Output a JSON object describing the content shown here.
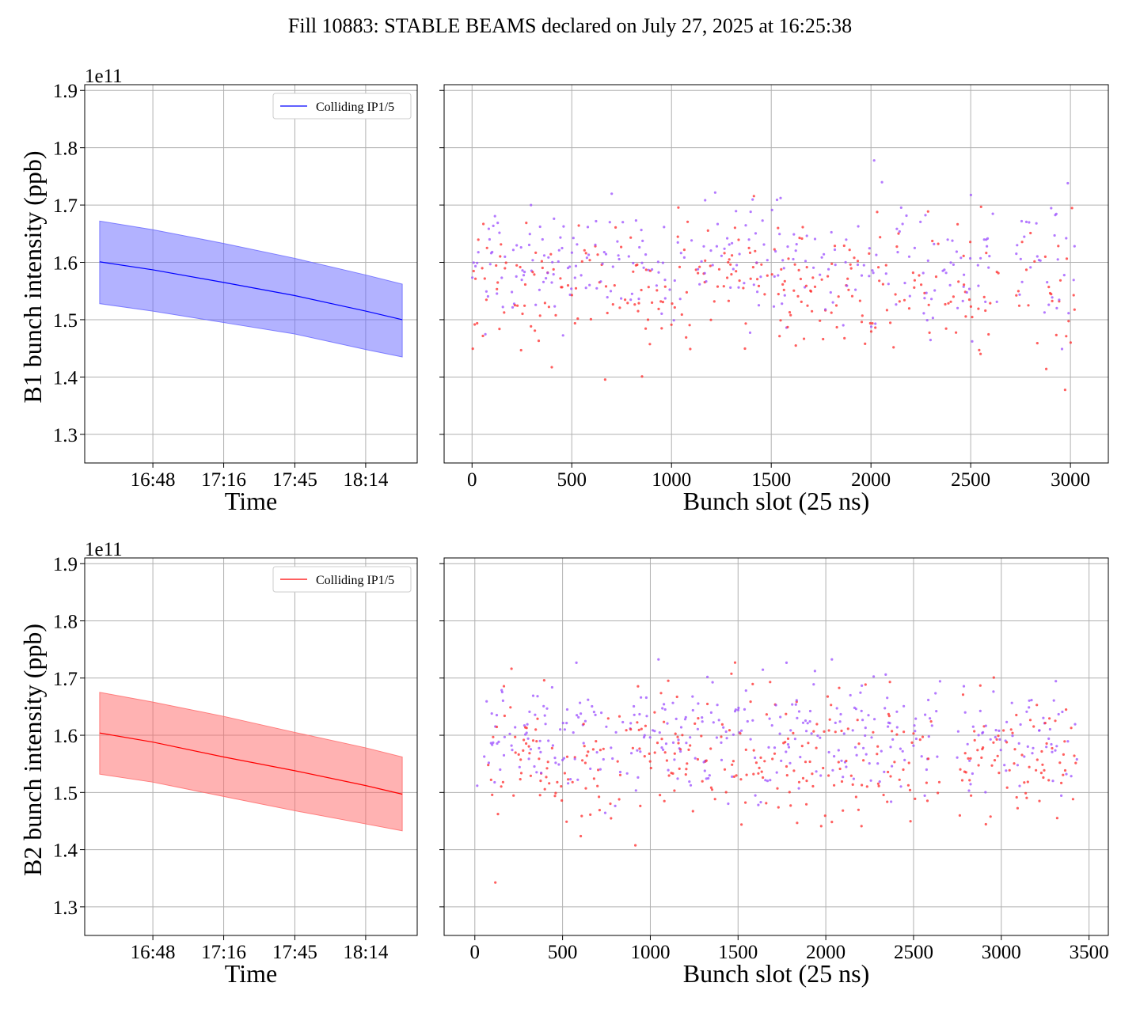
{
  "figure": {
    "title": "Fill 10883: STABLE BEAMS declared on July 27, 2025 at 16:25:38"
  },
  "colors": {
    "b1_line": "#0000ff",
    "b1_band": "#6666ff",
    "b2_line": "#ff0000",
    "b2_band": "#ff6666",
    "scatter_red": "#ff2a2a",
    "scatter_purple": "#9b4dff",
    "grid": "#b0b0b0"
  },
  "chart_data": [
    {
      "type": "area",
      "panel": "b1-time",
      "xlabel": "Time",
      "ylabel": "B1 bunch intensity (ppb)",
      "y_offset_label": "1e11",
      "x_tick_labels": [
        "16:48",
        "17:16",
        "17:45",
        "18:14"
      ],
      "y_ticks": [
        1.3,
        1.4,
        1.5,
        1.6,
        1.7,
        1.8,
        1.9
      ],
      "ylim": [
        1.25,
        1.91
      ],
      "legend": {
        "label": "Colliding IP1/5",
        "placement": "upper right"
      },
      "grid": true,
      "series": [
        {
          "name": "Colliding IP1/5",
          "x": [
            "16:25",
            "16:48",
            "17:16",
            "17:45",
            "18:14",
            "18:26"
          ],
          "mean": [
            1.601,
            1.587,
            1.565,
            1.542,
            1.515,
            1.5
          ],
          "lower": [
            1.528,
            1.515,
            1.495,
            1.475,
            1.448,
            1.435
          ],
          "upper": [
            1.672,
            1.657,
            1.633,
            1.607,
            1.578,
            1.562
          ]
        }
      ]
    },
    {
      "type": "scatter",
      "panel": "b1-slots",
      "xlabel": "Bunch slot (25 ns)",
      "ylabel": "",
      "xlim": [
        -140,
        3190
      ],
      "ylim": [
        1.25,
        1.91
      ],
      "x_ticks": [
        0,
        500,
        1000,
        1500,
        2000,
        2500,
        3000
      ],
      "y_ticks": [
        1.3,
        1.4,
        1.5,
        1.6,
        1.7,
        1.8,
        1.9
      ],
      "grid": true,
      "series": [
        {
          "color": "red",
          "mean": 1.55,
          "spread": 0.06
        },
        {
          "color": "purple",
          "mean": 1.6,
          "spread": 0.055
        }
      ],
      "trains": [
        [
          0,
          30
        ],
        [
          50,
          170
        ],
        [
          200,
          320
        ],
        [
          330,
          460
        ],
        [
          480,
          600
        ],
        [
          610,
          720
        ],
        [
          730,
          860
        ],
        [
          870,
          970
        ],
        [
          990,
          1110
        ],
        [
          1120,
          1240
        ],
        [
          1250,
          1340
        ],
        [
          1360,
          1480
        ],
        [
          1500,
          1600
        ],
        [
          1610,
          1720
        ],
        [
          1740,
          1850
        ],
        [
          1860,
          1970
        ],
        [
          1990,
          2100
        ],
        [
          2110,
          2220
        ],
        [
          2240,
          2340
        ],
        [
          2360,
          2480
        ],
        [
          2490,
          2610
        ],
        [
          2620,
          2640
        ],
        [
          2730,
          2850
        ],
        [
          2870,
          2990
        ],
        [
          3000,
          3030
        ]
      ]
    },
    {
      "type": "area",
      "panel": "b2-time",
      "xlabel": "Time",
      "ylabel": "B2 bunch intensity (ppb)",
      "y_offset_label": "1e11",
      "x_tick_labels": [
        "16:48",
        "17:16",
        "17:45",
        "18:14"
      ],
      "y_ticks": [
        1.3,
        1.4,
        1.5,
        1.6,
        1.7,
        1.8,
        1.9
      ],
      "ylim": [
        1.25,
        1.91
      ],
      "legend": {
        "label": "Colliding IP1/5",
        "placement": "upper right"
      },
      "grid": true,
      "series": [
        {
          "name": "Colliding IP1/5",
          "x": [
            "16:25",
            "16:48",
            "17:16",
            "17:45",
            "18:14",
            "18:26"
          ],
          "mean": [
            1.604,
            1.588,
            1.562,
            1.538,
            1.512,
            1.497
          ],
          "lower": [
            1.532,
            1.518,
            1.493,
            1.468,
            1.445,
            1.433
          ],
          "upper": [
            1.675,
            1.658,
            1.633,
            1.605,
            1.578,
            1.562
          ]
        }
      ]
    },
    {
      "type": "scatter",
      "panel": "b2-slots",
      "xlabel": "Bunch slot (25 ns)",
      "ylabel": "",
      "xlim": [
        -175,
        3610
      ],
      "ylim": [
        1.25,
        1.91
      ],
      "x_ticks": [
        0,
        500,
        1000,
        1500,
        2000,
        2500,
        3000,
        3500
      ],
      "y_ticks": [
        1.3,
        1.4,
        1.5,
        1.6,
        1.7,
        1.8,
        1.9
      ],
      "grid": true,
      "series": [
        {
          "color": "red",
          "mean": 1.56,
          "spread": 0.06
        },
        {
          "color": "purple",
          "mean": 1.6,
          "spread": 0.055
        }
      ],
      "trains": [
        [
          0,
          20
        ],
        [
          50,
          170
        ],
        [
          200,
          320
        ],
        [
          330,
          460
        ],
        [
          470,
          590
        ],
        [
          600,
          720
        ],
        [
          730,
          850
        ],
        [
          860,
          980
        ],
        [
          990,
          1110
        ],
        [
          1120,
          1230
        ],
        [
          1240,
          1360
        ],
        [
          1370,
          1490
        ],
        [
          1500,
          1620
        ],
        [
          1630,
          1750
        ],
        [
          1760,
          1870
        ],
        [
          1880,
          2000
        ],
        [
          2010,
          2130
        ],
        [
          2140,
          2260
        ],
        [
          2270,
          2390
        ],
        [
          2400,
          2520
        ],
        [
          2530,
          2650
        ],
        [
          2750,
          2870
        ],
        [
          2880,
          3000
        ],
        [
          3010,
          3130
        ],
        [
          3140,
          3260
        ],
        [
          3270,
          3380
        ],
        [
          3390,
          3430
        ]
      ]
    }
  ]
}
